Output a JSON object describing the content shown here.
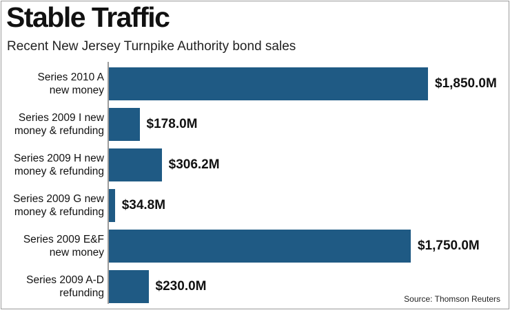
{
  "chart_data": {
    "type": "bar",
    "orientation": "horizontal",
    "title": "Stable Traffic",
    "subtitle": "Recent New Jersey Turnpike Authority bond sales",
    "categories": [
      [
        "Series 2010 A",
        "new money"
      ],
      [
        "Series 2009 I new",
        "money & refunding"
      ],
      [
        "Series 2009 H new",
        "money & refunding"
      ],
      [
        "Series 2009 G new",
        "money & refunding"
      ],
      [
        "Series 2009 E&F",
        "new money"
      ],
      [
        "Series 2009 A-D",
        "refunding"
      ]
    ],
    "values": [
      1850.0,
      178.0,
      306.2,
      34.8,
      1750.0,
      230.0
    ],
    "value_labels": [
      "$1,850.0M",
      "$178.0M",
      "$306.2M",
      "$34.8M",
      "$1,750.0M",
      "$230.0M"
    ],
    "unit": "$M",
    "xlim": [
      0,
      1850
    ],
    "bar_color": "#1f5a84",
    "grid": false,
    "source": "Source: Thomson Reuters"
  }
}
